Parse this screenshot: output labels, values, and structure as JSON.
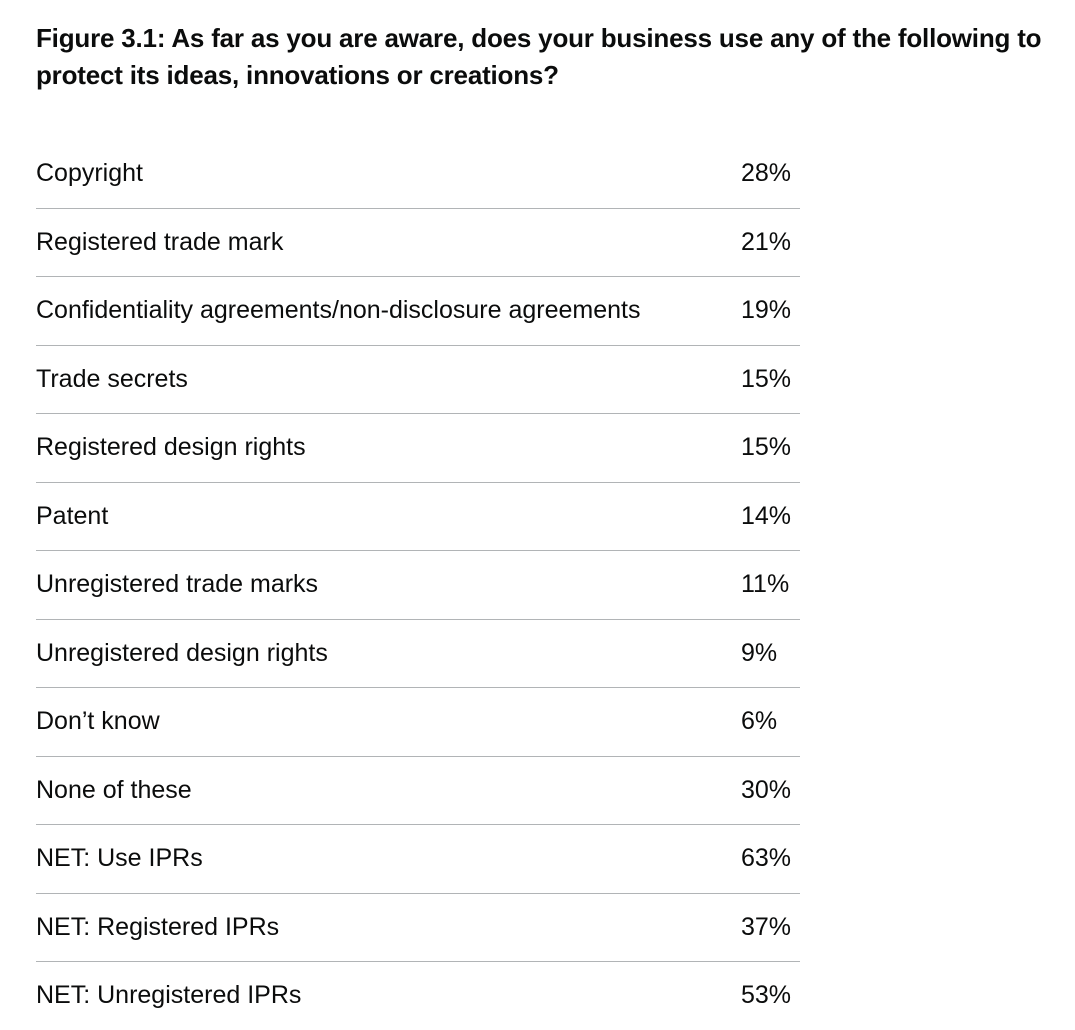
{
  "figure": {
    "title": "Figure 3.1: As far as you are aware, does your business use any of the following to protect its ideas, innovations or creations?"
  },
  "chart_data": {
    "type": "table",
    "title": "Figure 3.1: As far as you are aware, does your business use any of the following to protect its ideas, innovations or creations?",
    "rows": [
      {
        "label": "Copyright",
        "value": "28%"
      },
      {
        "label": "Registered trade mark",
        "value": "21%"
      },
      {
        "label": "Confidentiality agreements/non-disclosure agreements",
        "value": "19%"
      },
      {
        "label": "Trade secrets",
        "value": "15%"
      },
      {
        "label": "Registered design rights",
        "value": "15%"
      },
      {
        "label": "Patent",
        "value": "14%"
      },
      {
        "label": "Unregistered trade marks",
        "value": "11%"
      },
      {
        "label": "Unregistered design rights",
        "value": "9%"
      },
      {
        "label": "Don’t know",
        "value": "6%"
      },
      {
        "label": "None of these",
        "value": "30%"
      },
      {
        "label": "NET: Use IPRs",
        "value": "63%"
      },
      {
        "label": "NET: Registered IPRs",
        "value": "37%"
      },
      {
        "label": "NET: Unregistered IPRs",
        "value": "53%"
      }
    ]
  }
}
